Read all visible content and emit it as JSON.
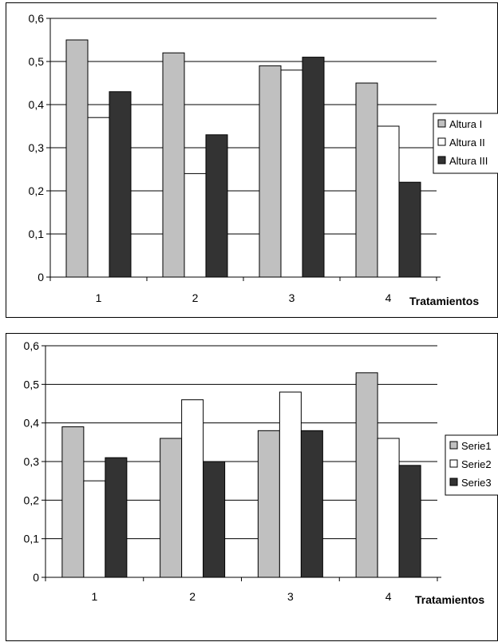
{
  "chart_data": [
    {
      "type": "bar",
      "categories": [
        "1",
        "2",
        "3",
        "4"
      ],
      "xlabel": "Tratamientos",
      "ylabel": "",
      "ylim": [
        0,
        0.6
      ],
      "yticks": [
        "0",
        "0,1",
        "0,2",
        "0,3",
        "0,4",
        "0,5",
        "0,6"
      ],
      "grid": true,
      "legend_position": "right",
      "series": [
        {
          "name": "Altura I",
          "values": [
            0.55,
            0.52,
            0.49,
            0.45
          ],
          "color": "#c0c0c0"
        },
        {
          "name": "Altura II",
          "values": [
            0.37,
            0.24,
            0.48,
            0.35
          ],
          "color": "#ffffff"
        },
        {
          "name": "Altura III",
          "values": [
            0.43,
            0.33,
            0.51,
            0.22
          ],
          "color": "#333333"
        }
      ]
    },
    {
      "type": "bar",
      "categories": [
        "1",
        "2",
        "3",
        "4"
      ],
      "xlabel": "Tratamientos",
      "ylabel": "",
      "ylim": [
        0,
        0.6
      ],
      "yticks": [
        "0",
        "0,1",
        "0,2",
        "0,3",
        "0,4",
        "0,5",
        "0,6"
      ],
      "grid": true,
      "legend_position": "right",
      "series": [
        {
          "name": "Serie1",
          "values": [
            0.39,
            0.36,
            0.38,
            0.53
          ],
          "color": "#c0c0c0"
        },
        {
          "name": "Serie2",
          "values": [
            0.25,
            0.46,
            0.48,
            0.36
          ],
          "color": "#ffffff"
        },
        {
          "name": "Serie3",
          "values": [
            0.31,
            0.3,
            0.38,
            0.29
          ],
          "color": "#333333"
        }
      ]
    }
  ]
}
